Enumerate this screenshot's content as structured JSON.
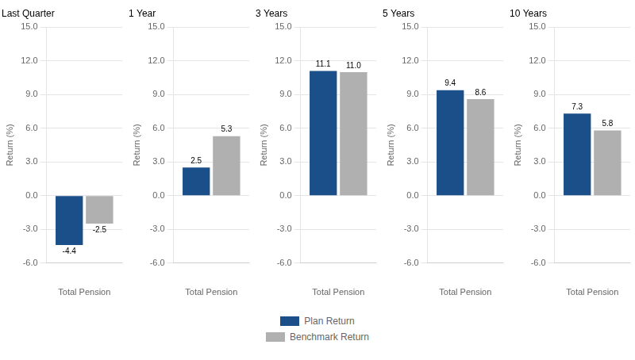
{
  "chart_data": [
    {
      "type": "bar",
      "title": "Last Quarter",
      "categories": [
        null
      ],
      "xlabel": "Total Pension",
      "ylabel": "Return (%)",
      "series": [
        {
          "name": "Plan Return",
          "color": "#1B4F8A",
          "values": [
            -4.4
          ],
          "value_labels": [
            "-4.4"
          ]
        },
        {
          "name": "Benchmark Return",
          "color": "#B0B0B0",
          "values": [
            -2.5
          ],
          "value_labels": [
            "-2.5"
          ]
        }
      ],
      "ylim": [
        -6.0,
        15.0
      ],
      "yticks": [
        {
          "value": -6.0,
          "label": "-6.0"
        },
        {
          "value": -3.0,
          "label": "-3.0"
        },
        {
          "value": 0.0,
          "label": "0.0"
        },
        {
          "value": 3.0,
          "label": "3.0"
        },
        {
          "value": 6.0,
          "label": "6.0"
        },
        {
          "value": 9.0,
          "label": "9.0"
        },
        {
          "value": 12.0,
          "label": "12.0"
        },
        {
          "value": 15.0,
          "label": "15.0"
        }
      ],
      "grid": true,
      "data_labels": true,
      "legend": "bottom"
    },
    {
      "type": "bar",
      "title": "1 Year",
      "categories": [
        null
      ],
      "xlabel": "Total Pension",
      "ylabel": "Return (%)",
      "series": [
        {
          "name": "Plan Return",
          "color": "#1B4F8A",
          "values": [
            2.5
          ],
          "value_labels": [
            "2.5"
          ]
        },
        {
          "name": "Benchmark Return",
          "color": "#B0B0B0",
          "values": [
            5.3
          ],
          "value_labels": [
            "5.3"
          ]
        }
      ],
      "ylim": [
        -6.0,
        15.0
      ],
      "yticks": [
        {
          "value": -6.0,
          "label": "-6.0"
        },
        {
          "value": -3.0,
          "label": "-3.0"
        },
        {
          "value": 0.0,
          "label": "0.0"
        },
        {
          "value": 3.0,
          "label": "3.0"
        },
        {
          "value": 6.0,
          "label": "6.0"
        },
        {
          "value": 9.0,
          "label": "9.0"
        },
        {
          "value": 12.0,
          "label": "12.0"
        },
        {
          "value": 15.0,
          "label": "15.0"
        }
      ],
      "grid": true,
      "data_labels": true,
      "legend": "bottom"
    },
    {
      "type": "bar",
      "title": "3 Years",
      "categories": [
        null
      ],
      "xlabel": "Total Pension",
      "ylabel": "Return (%)",
      "series": [
        {
          "name": "Plan Return",
          "color": "#1B4F8A",
          "values": [
            11.1
          ],
          "value_labels": [
            "11.1"
          ]
        },
        {
          "name": "Benchmark Return",
          "color": "#B0B0B0",
          "values": [
            11.0
          ],
          "value_labels": [
            "11.0"
          ]
        }
      ],
      "ylim": [
        -6.0,
        15.0
      ],
      "yticks": [
        {
          "value": -6.0,
          "label": "-6.0"
        },
        {
          "value": -3.0,
          "label": "-3.0"
        },
        {
          "value": 0.0,
          "label": "0.0"
        },
        {
          "value": 3.0,
          "label": "3.0"
        },
        {
          "value": 6.0,
          "label": "6.0"
        },
        {
          "value": 9.0,
          "label": "9.0"
        },
        {
          "value": 12.0,
          "label": "12.0"
        },
        {
          "value": 15.0,
          "label": "15.0"
        }
      ],
      "grid": true,
      "data_labels": true,
      "legend": "bottom"
    },
    {
      "type": "bar",
      "title": "5 Years",
      "categories": [
        null
      ],
      "xlabel": "Total Pension",
      "ylabel": "Return (%)",
      "series": [
        {
          "name": "Plan Return",
          "color": "#1B4F8A",
          "values": [
            9.4
          ],
          "value_labels": [
            "9.4"
          ]
        },
        {
          "name": "Benchmark Return",
          "color": "#B0B0B0",
          "values": [
            8.6
          ],
          "value_labels": [
            "8.6"
          ]
        }
      ],
      "ylim": [
        -6.0,
        15.0
      ],
      "yticks": [
        {
          "value": -6.0,
          "label": "-6.0"
        },
        {
          "value": -3.0,
          "label": "-3.0"
        },
        {
          "value": 0.0,
          "label": "0.0"
        },
        {
          "value": 3.0,
          "label": "3.0"
        },
        {
          "value": 6.0,
          "label": "6.0"
        },
        {
          "value": 9.0,
          "label": "9.0"
        },
        {
          "value": 12.0,
          "label": "12.0"
        },
        {
          "value": 15.0,
          "label": "15.0"
        }
      ],
      "grid": true,
      "data_labels": true,
      "legend": "bottom"
    },
    {
      "type": "bar",
      "title": "10 Years",
      "categories": [
        null
      ],
      "xlabel": "Total Pension",
      "ylabel": "Return (%)",
      "series": [
        {
          "name": "Plan Return",
          "color": "#1B4F8A",
          "values": [
            7.3
          ],
          "value_labels": [
            "7.3"
          ]
        },
        {
          "name": "Benchmark Return",
          "color": "#B0B0B0",
          "values": [
            5.8
          ],
          "value_labels": [
            "5.8"
          ]
        }
      ],
      "ylim": [
        -6.0,
        15.0
      ],
      "yticks": [
        {
          "value": -6.0,
          "label": "-6.0"
        },
        {
          "value": -3.0,
          "label": "-3.0"
        },
        {
          "value": 0.0,
          "label": "0.0"
        },
        {
          "value": 3.0,
          "label": "3.0"
        },
        {
          "value": 6.0,
          "label": "6.0"
        },
        {
          "value": 9.0,
          "label": "9.0"
        },
        {
          "value": 12.0,
          "label": "12.0"
        },
        {
          "value": 15.0,
          "label": "15.0"
        }
      ],
      "grid": true,
      "data_labels": true,
      "legend": "bottom"
    }
  ]
}
